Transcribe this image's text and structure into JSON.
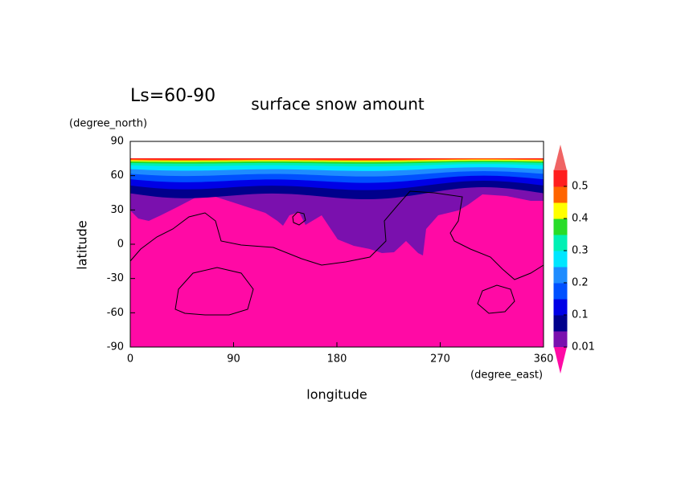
{
  "chart_data": {
    "type": "contour",
    "title": "surface snow amount",
    "annotation": "Ls=60-90",
    "x_label": "longitude",
    "y_label": "latitude",
    "x_unit": "(degree_east)",
    "y_unit": "(degree_north)",
    "xlim": [
      0,
      360
    ],
    "xticks": [
      0,
      90,
      180,
      270,
      360
    ],
    "ylim": [
      -90,
      90
    ],
    "yticks": [
      90,
      60,
      30,
      0,
      -30,
      -60,
      -90
    ],
    "colorbar": {
      "levels": [
        0.01,
        0.05,
        0.1,
        0.15,
        0.2,
        0.25,
        0.3,
        0.35,
        0.4,
        0.45,
        0.5,
        0.55
      ],
      "colors": [
        "#7a10ae",
        "#00008c",
        "#0000e6",
        "#0050ff",
        "#1e8cff",
        "#00e6ff",
        "#00f0b4",
        "#28dc28",
        "#ffff00",
        "#ff6400",
        "#ff1e1e"
      ],
      "under_color": "#ff0aa5",
      "over_color": "#f06464",
      "ticks": [
        0.01,
        0.1,
        0.2,
        0.3,
        0.4,
        0.5
      ]
    }
  }
}
